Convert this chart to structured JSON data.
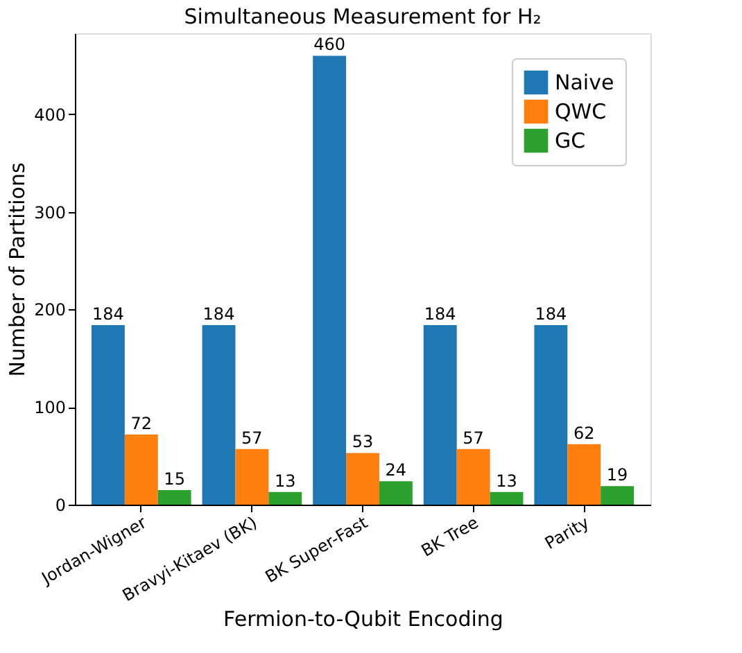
{
  "chart_data": {
    "type": "bar",
    "title": "Simultaneous Measurement for H₂",
    "xlabel": "Fermion-to-Qubit Encoding",
    "ylabel": "Number of Partitions",
    "categories": [
      "Jordan-Wigner",
      "Bravyi-Kitaev (BK)",
      "BK Super-Fast",
      "BK Tree",
      "Parity"
    ],
    "series": [
      {
        "name": "Naive",
        "color": "#1f77b4",
        "values": [
          184,
          184,
          460,
          184,
          184
        ]
      },
      {
        "name": "QWC",
        "color": "#ff7f0e",
        "values": [
          72,
          57,
          53,
          57,
          62
        ]
      },
      {
        "name": "GC",
        "color": "#2ca02c",
        "values": [
          15,
          13,
          24,
          13,
          19
        ]
      }
    ],
    "ylim": [
      0,
      483
    ],
    "yticks": [
      0,
      100,
      200,
      300,
      400
    ],
    "grid": false,
    "legend": "top right",
    "data_labels": true
  }
}
